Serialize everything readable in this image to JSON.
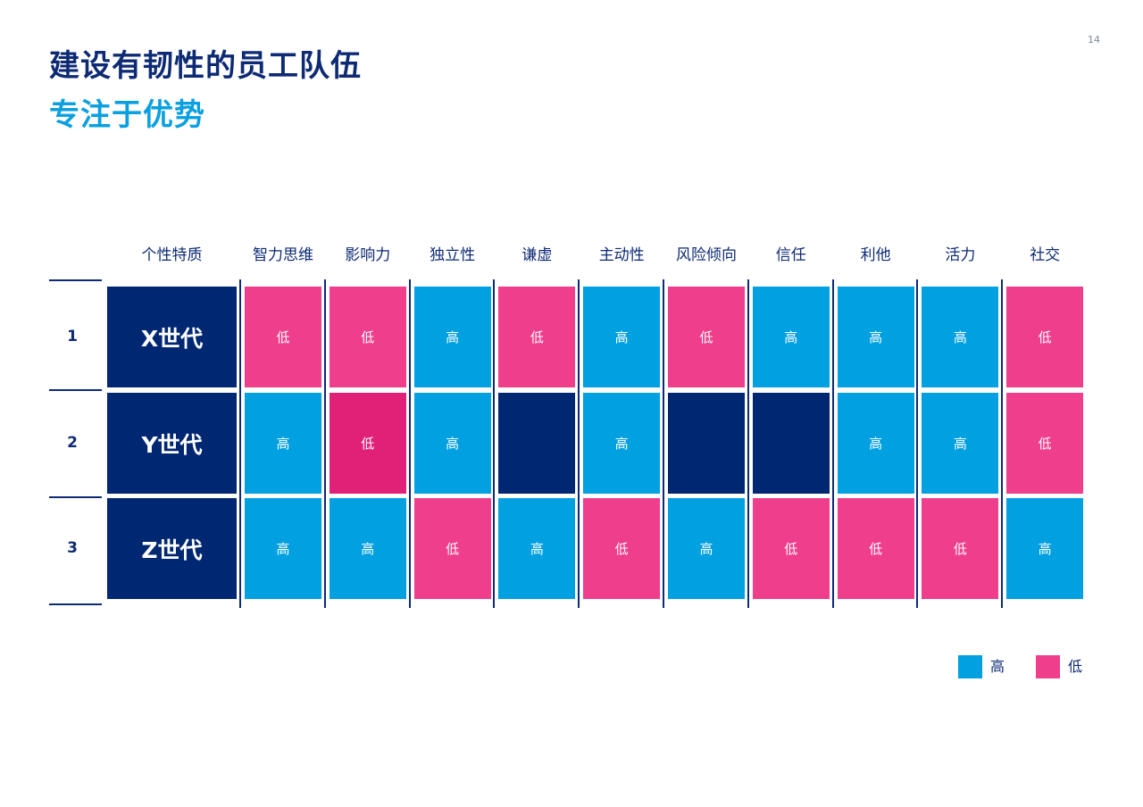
{
  "page_number": "14",
  "title": "建设有韧性的员工队伍",
  "subtitle": "专注于优势",
  "colors": {
    "high": "#00a0e1",
    "low": "#ef3e8c",
    "low_emphasis": "#e12078",
    "blank": "#002772",
    "generation": "#002772",
    "text_dark": "#0d2a74"
  },
  "chart_data": {
    "type": "table",
    "corner_header": "个性特质",
    "columns": [
      "智力思维",
      "影响力",
      "独立性",
      "谦虚",
      "主动性",
      "风险倾向",
      "信任",
      "利他",
      "活力",
      "社交"
    ],
    "rows": [
      {
        "index": "1",
        "label": "X世代",
        "values": [
          "低",
          "低",
          "高",
          "低",
          "高",
          "低",
          "高",
          "高",
          "高",
          "低"
        ]
      },
      {
        "index": "2",
        "label": "Y世代",
        "values": [
          "高",
          "低",
          "高",
          "",
          "高",
          "",
          "",
          "高",
          "高",
          "低"
        ]
      },
      {
        "index": "3",
        "label": "Z世代",
        "values": [
          "高",
          "高",
          "低",
          "高",
          "低",
          "高",
          "低",
          "低",
          "低",
          "高"
        ]
      }
    ],
    "legend": [
      {
        "label": "高",
        "color": "#00a0e1"
      },
      {
        "label": "低",
        "color": "#ef3e8c"
      }
    ]
  }
}
